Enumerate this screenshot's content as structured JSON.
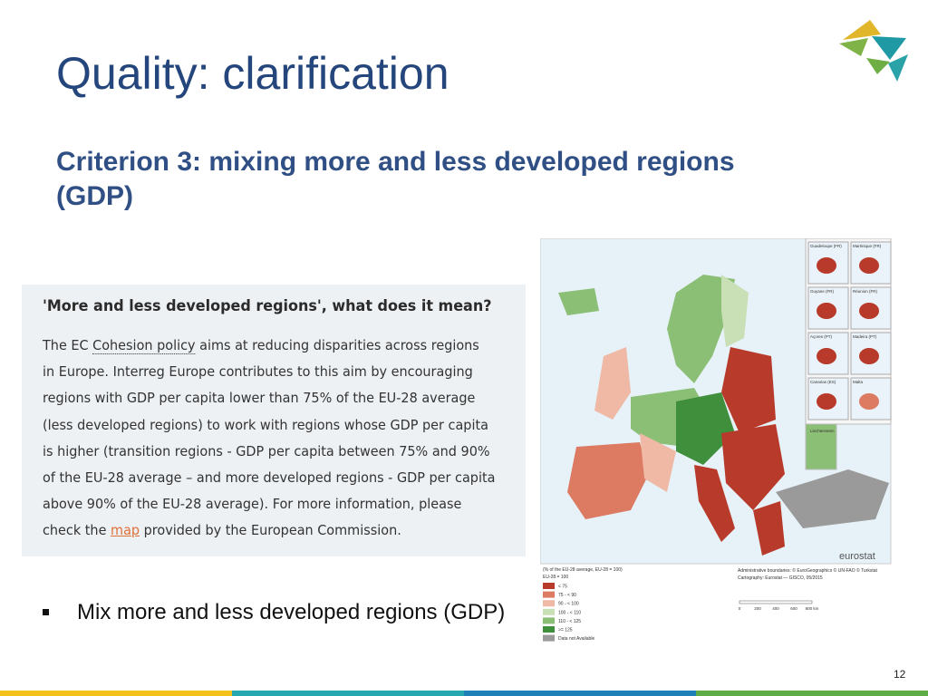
{
  "header": {
    "title": "Quality: clarification",
    "subtitle_lines": [
      "Criterion 3: mixing more and less developed regions",
      "(GDP)"
    ]
  },
  "textbox": {
    "heading": "'More and less developed regions', what does it mean?",
    "lines": [
      [
        "The EC ",
        "Cohesion policy",
        " aims at reducing disparities across regions"
      ],
      [
        "in Europe. Interreg Europe contributes to this aim by encouraging"
      ],
      [
        "regions with GDP per capita lower than 75% of the EU-28 average"
      ],
      [
        "(less developed regions) to work with regions whose GDP per capita"
      ],
      [
        "is higher (transition regions - GDP per capita between 75% and 90%"
      ],
      [
        "of the EU-28 average – and more developed regions - GDP per capita"
      ],
      [
        "above 90% of the EU-28 average). For more information, please"
      ],
      [
        "check the ",
        "map",
        " provided by the European Commission."
      ]
    ]
  },
  "bullet": "Mix more and less developed regions (GDP)",
  "map": {
    "brand": "eurostat",
    "insets": [
      "Guadeloupe (FR)",
      "Martinique (FR)",
      "Guyane (FR)",
      "Réunion (FR)",
      "Açores (PT)",
      "Madeira (PT)",
      "Canarias (ES)",
      "Malta",
      "Liechtenstein"
    ],
    "legend_title": [
      "(% of the EU-28 average, EU-28 = 100)",
      "EU-28 = 100"
    ],
    "legend": [
      {
        "label": "< 75",
        "color": "#b83a2a"
      },
      {
        "label": "75 - < 90",
        "color": "#dc7a62"
      },
      {
        "label": "90 - < 100",
        "color": "#efb9a5"
      },
      {
        "label": "100 - < 110",
        "color": "#c9dfb6"
      },
      {
        "label": "110 - < 125",
        "color": "#8cbf76"
      },
      {
        "label": ">= 125",
        "color": "#3f8f3c"
      },
      {
        "label": "Data not Available",
        "color": "#9a9a9a"
      }
    ],
    "credits": [
      "Administrative boundaries: © EuroGeographics © UN-FAO © Turkstat",
      "Cartography: Eurostat — GISCO, 05/2015"
    ],
    "scale": [
      "0",
      "200",
      "400",
      "600",
      "800 km"
    ]
  },
  "page_number": "12"
}
